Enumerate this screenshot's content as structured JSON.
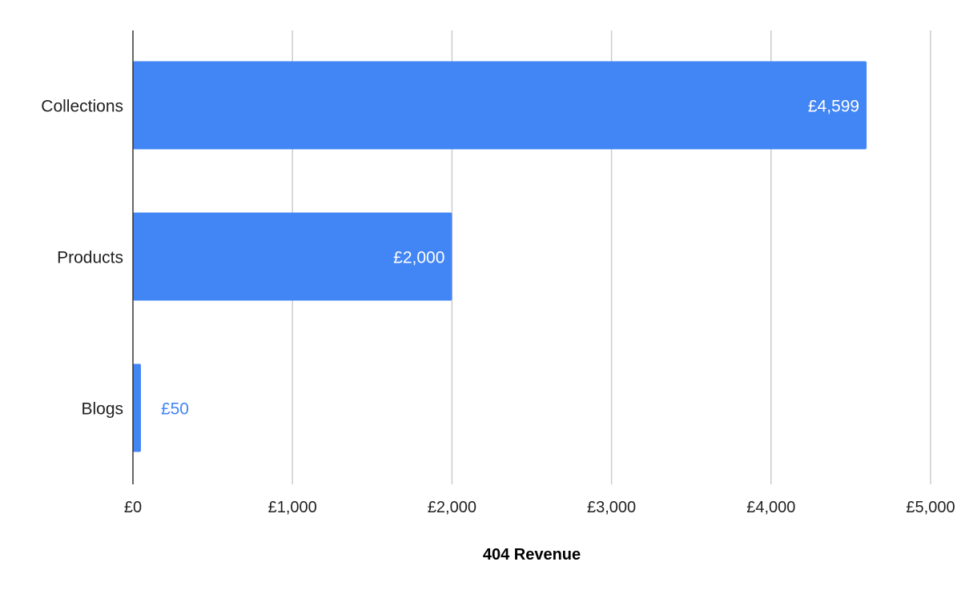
{
  "chart_data": {
    "type": "bar",
    "orientation": "horizontal",
    "title": "",
    "xlabel": "404 Revenue",
    "ylabel": "",
    "categories": [
      "Collections",
      "Products",
      "Blogs"
    ],
    "values": [
      4599,
      2000,
      50
    ],
    "data_labels": [
      "£4,599",
      "£2,000",
      "£50"
    ],
    "xlim": [
      0,
      5000
    ],
    "xticks": [
      0,
      1000,
      2000,
      3000,
      4000,
      5000
    ],
    "xtick_labels": [
      "£0",
      "£1,000",
      "£2,000",
      "£3,000",
      "£4,000",
      "£5,000"
    ],
    "grid": "vertical",
    "legend": "none",
    "colors": {
      "bar": "#4285f4",
      "label_inside": "#ffffff",
      "label_outside": "#4285f4",
      "grid": "#cccccc",
      "axis": "#333333"
    }
  }
}
